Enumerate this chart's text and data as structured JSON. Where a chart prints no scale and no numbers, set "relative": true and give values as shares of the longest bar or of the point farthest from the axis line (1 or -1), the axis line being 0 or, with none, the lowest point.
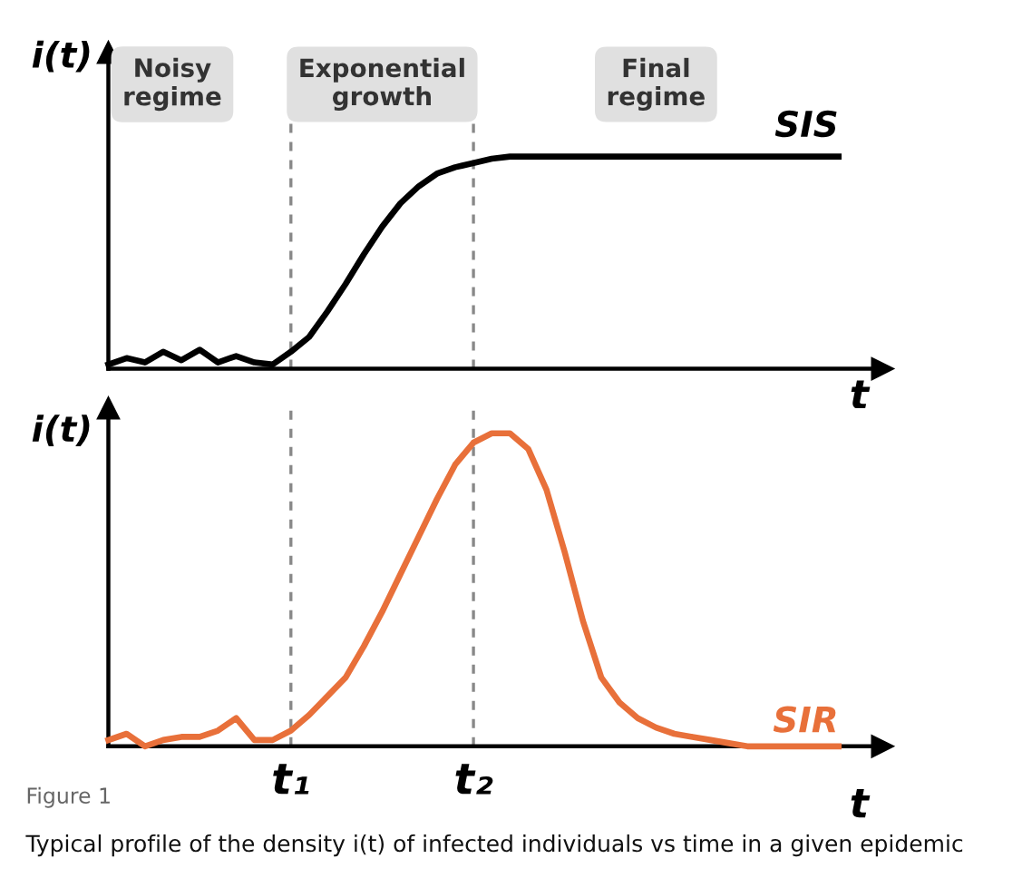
{
  "chart_data": [
    {
      "type": "line",
      "relative": true,
      "ylabel": "i(t)",
      "xlabel": "t",
      "tick_labels": false,
      "legend": false,
      "grid": false,
      "categories": [
        null,
        null,
        null,
        null,
        null,
        null,
        null,
        null,
        null,
        null,
        "t₁",
        null,
        null,
        null,
        null,
        null,
        null,
        null,
        null,
        null,
        "t₂",
        null,
        null,
        null,
        null,
        null,
        null,
        null,
        null,
        null,
        null,
        null,
        null,
        null,
        null,
        null,
        null,
        null,
        null,
        null,
        null
      ],
      "series": [
        {
          "name": "SIS",
          "color": "#000000",
          "values": [
            0.02,
            0.05,
            0.03,
            0.08,
            0.04,
            0.09,
            0.03,
            0.06,
            0.03,
            0.02,
            0.08,
            0.15,
            0.27,
            0.4,
            0.54,
            0.67,
            0.78,
            0.86,
            0.92,
            0.95,
            0.97,
            0.99,
            1.0,
            1.0,
            1.0,
            1.0,
            1.0,
            1.0,
            1.0,
            1.0,
            1.0,
            1.0,
            1.0,
            1.0,
            1.0,
            1.0,
            1.0,
            1.0,
            1.0,
            1.0,
            1.0
          ]
        }
      ],
      "ref_lines": [
        {
          "axis": "x",
          "value": "t₁",
          "color": "#888888",
          "line_style": "dashed"
        },
        {
          "axis": "x",
          "value": "t₂",
          "color": "#888888",
          "line_style": "dashed"
        }
      ],
      "annotations": [
        "Noisy\nregime",
        "Exponential\ngrowth",
        "Final\nregime"
      ]
    },
    {
      "type": "line",
      "relative": true,
      "ylabel": "i(t)",
      "xlabel": "t",
      "tick_labels": "x",
      "legend": false,
      "grid": false,
      "categories": [
        null,
        null,
        null,
        null,
        null,
        null,
        null,
        null,
        null,
        null,
        "t₁",
        null,
        null,
        null,
        null,
        null,
        null,
        null,
        null,
        null,
        "t₂",
        null,
        null,
        null,
        null,
        null,
        null,
        null,
        null,
        null,
        null,
        null,
        null,
        null,
        null,
        null,
        null,
        null,
        null,
        null,
        null
      ],
      "series": [
        {
          "name": "SIR",
          "color": "#e8703a",
          "values": [
            0.02,
            0.04,
            0.0,
            0.02,
            0.03,
            0.03,
            0.05,
            0.09,
            0.02,
            0.02,
            0.05,
            0.1,
            0.16,
            0.22,
            0.32,
            0.43,
            0.55,
            0.67,
            0.79,
            0.9,
            0.97,
            1.0,
            1.0,
            0.95,
            0.82,
            0.62,
            0.4,
            0.22,
            0.14,
            0.09,
            0.06,
            0.04,
            0.03,
            0.02,
            0.01,
            0.0,
            0.0,
            0.0,
            0.0,
            0.0,
            0.0
          ]
        }
      ],
      "ref_lines": [
        {
          "axis": "x",
          "value": "t₁",
          "color": "#888888",
          "line_style": "dashed"
        },
        {
          "axis": "x",
          "value": "t₂",
          "color": "#888888",
          "line_style": "dashed"
        }
      ],
      "annotations": [
        "Figure 1",
        "Typical profile of the density i(t) of infected individuals vs time in a given epidemic"
      ]
    }
  ]
}
